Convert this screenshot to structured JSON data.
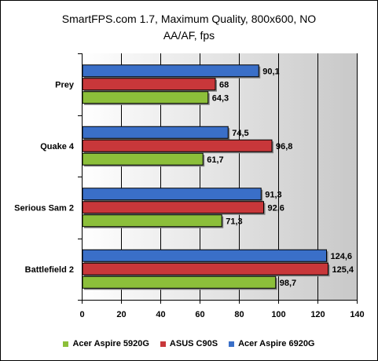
{
  "chart_data": {
    "type": "bar",
    "orientation": "horizontal",
    "title_lines": [
      "SmartFPS.com 1.7, Maximum Quality, 800x600, NO",
      "AA/AF, fps"
    ],
    "categories": [
      "Prey",
      "Quake 4",
      "Serious Sam 2",
      "Battlefield 2"
    ],
    "series": [
      {
        "name": "Acer Aspire 6920G",
        "color": "#3a6fc8",
        "values": [
          90.1,
          74.5,
          91.3,
          124.6
        ],
        "labels": [
          "90,1",
          "74,5",
          "91,3",
          "124,6"
        ]
      },
      {
        "name": "ASUS C90S",
        "color": "#c8373a",
        "values": [
          68,
          96.8,
          92.6,
          125.4
        ],
        "labels": [
          "68",
          "96,8",
          "92,6",
          "125,4"
        ]
      },
      {
        "name": "Acer Aspire 5920G",
        "color": "#8cbf3a",
        "values": [
          64.3,
          61.7,
          71.3,
          98.7
        ],
        "labels": [
          "64,3",
          "61,7",
          "71,3",
          "98,7"
        ]
      }
    ],
    "xlim": [
      0,
      140
    ],
    "xticks": [
      0,
      20,
      40,
      60,
      80,
      100,
      120,
      140
    ],
    "grid": "vertical",
    "legend_position": "bottom",
    "legend_order": [
      "Acer Aspire 5920G",
      "ASUS C90S",
      "Acer Aspire 6920G"
    ]
  }
}
